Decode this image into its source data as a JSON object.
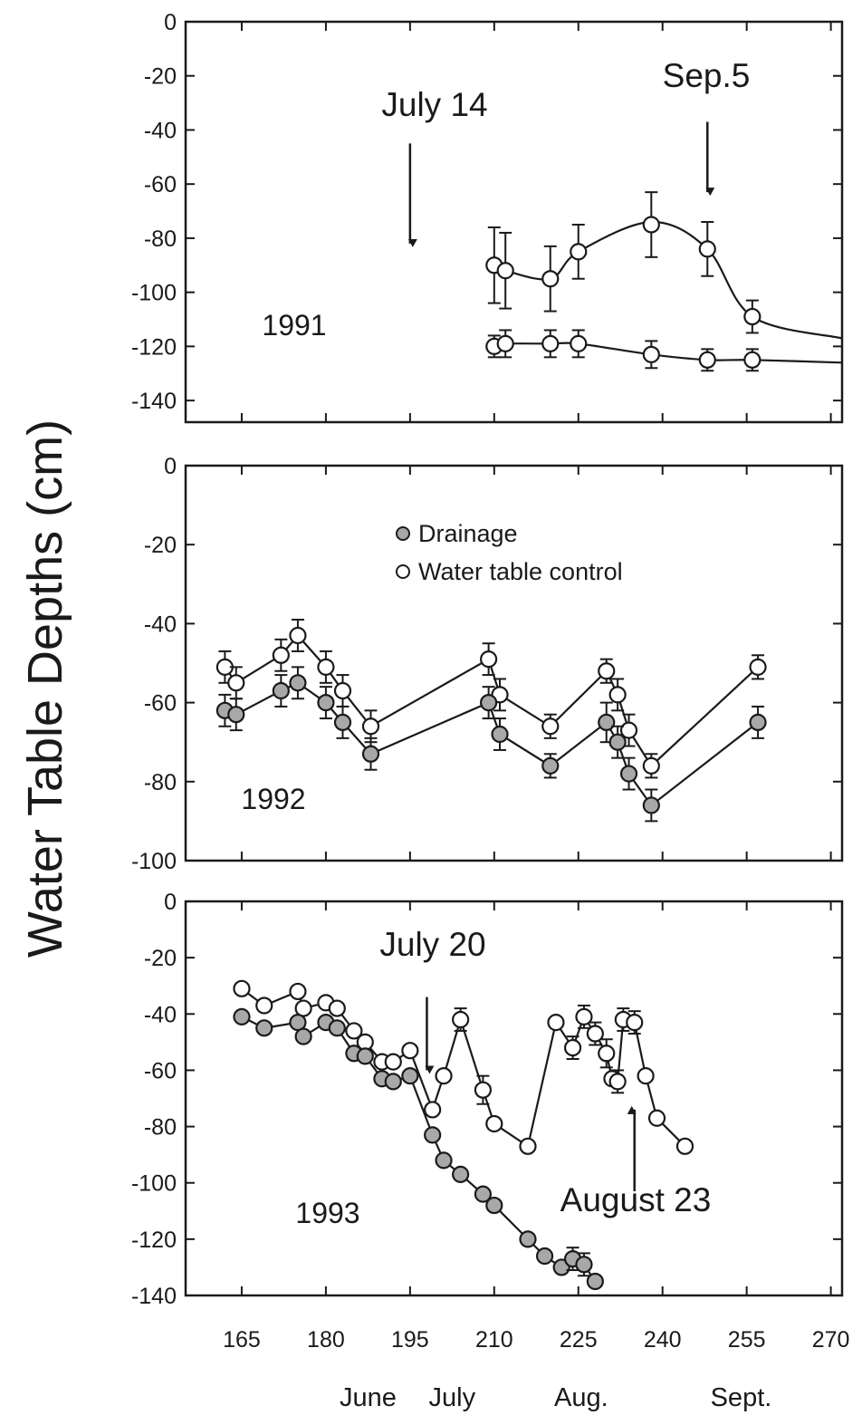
{
  "chart_data": {
    "type": "line",
    "ylabel": "Water Table Depths (cm)",
    "x_ticks": [
      165,
      180,
      195,
      210,
      225,
      240,
      255,
      270
    ],
    "x_months": [
      "June",
      "July",
      "Aug.",
      "Sept."
    ],
    "xlim": [
      155,
      272
    ],
    "legend": {
      "placement": "center of middle panel",
      "entries": [
        {
          "label": "Drainage",
          "marker": "shaded-circle"
        },
        {
          "label": "Water table control",
          "marker": "open-circle"
        }
      ]
    },
    "panels": [
      {
        "year": "1991",
        "ylim": [
          -148,
          0
        ],
        "y_ticks": [
          0,
          -20,
          -40,
          -60,
          -80,
          -100,
          -120,
          -140
        ],
        "annotations": [
          {
            "text": "July 14",
            "arrow_x": 195,
            "arrow_y_from": -45,
            "arrow_y_to": -82
          },
          {
            "text": "Sep.5",
            "arrow_x": 248,
            "arrow_y_from": -37,
            "arrow_y_to": -63
          }
        ],
        "series": [
          {
            "name": "Water table control",
            "marker": "open",
            "x": [
              210,
              212,
              220,
              225,
              238,
              248,
              256
            ],
            "y": [
              -90,
              -92,
              -95,
              -85,
              -75,
              -84,
              -109
            ],
            "err": [
              14,
              14,
              12,
              10,
              12,
              10,
              6
            ],
            "curve_x": [
              210,
              212,
              220,
              225,
              238,
              248,
              256,
              272
            ],
            "curve_y": [
              -90,
              -92,
              -95,
              -85,
              -74,
              -84,
              -109,
              -117
            ]
          },
          {
            "name": "Drainage",
            "marker": "open",
            "x": [
              210,
              212,
              220,
              225,
              238,
              248,
              256
            ],
            "y": [
              -120,
              -119,
              -119,
              -119,
              -123,
              -125,
              -125
            ],
            "err": [
              4,
              5,
              5,
              5,
              5,
              4,
              4
            ],
            "curve_x": [
              210,
              212,
              220,
              225,
              238,
              248,
              256,
              272
            ],
            "curve_y": [
              -120,
              -119,
              -119,
              -119,
              -123,
              -125,
              -125,
              -126
            ]
          }
        ]
      },
      {
        "year": "1992",
        "ylim": [
          -100,
          0
        ],
        "y_ticks": [
          0,
          -20,
          -40,
          -60,
          -80,
          -100
        ],
        "annotations": [],
        "series": [
          {
            "name": "Water table control",
            "marker": "open",
            "x": [
              162,
              164,
              172,
              175,
              180,
              183,
              188,
              209,
              211,
              220,
              230,
              232,
              234,
              238,
              257
            ],
            "y": [
              -51,
              -55,
              -48,
              -43,
              -51,
              -57,
              -66,
              -49,
              -58,
              -66,
              -52,
              -58,
              -67,
              -76,
              -51
            ],
            "err": [
              4,
              4,
              4,
              4,
              4,
              4,
              4,
              4,
              4,
              3,
              3,
              4,
              4,
              3,
              3
            ]
          },
          {
            "name": "Drainage",
            "marker": "shaded",
            "x": [
              162,
              164,
              172,
              175,
              180,
              183,
              188,
              209,
              211,
              220,
              230,
              232,
              234,
              238,
              257
            ],
            "y": [
              -62,
              -63,
              -57,
              -55,
              -60,
              -65,
              -73,
              -60,
              -68,
              -76,
              -65,
              -70,
              -78,
              -86,
              -65
            ],
            "err": [
              4,
              4,
              4,
              4,
              4,
              4,
              4,
              4,
              4,
              3,
              5,
              4,
              4,
              4,
              4
            ]
          }
        ]
      },
      {
        "year": "1993",
        "ylim": [
          -140,
          0
        ],
        "y_ticks": [
          0,
          -20,
          -40,
          -60,
          -80,
          -100,
          -120,
          -140
        ],
        "annotations": [
          {
            "text": "July 20",
            "arrow_x": 198,
            "arrow_y_from": -34,
            "arrow_y_to": -60
          },
          {
            "text": "August 23",
            "arrow_x": 235,
            "arrow_y_from": -103,
            "arrow_y_to": -74
          }
        ],
        "series": [
          {
            "name": "Water table control",
            "marker": "open",
            "x": [
              165,
              169,
              175,
              176,
              180,
              182,
              185,
              187,
              190,
              192,
              195,
              199,
              201,
              204,
              208,
              210,
              216,
              221,
              224,
              226,
              228,
              230,
              231,
              232,
              233,
              235,
              237,
              239,
              244
            ],
            "y": [
              -31,
              -37,
              -32,
              -38,
              -36,
              -38,
              -46,
              -50,
              -57,
              -57,
              -53,
              -74,
              -62,
              -42,
              -67,
              -79,
              -87,
              -43,
              -52,
              -41,
              -47,
              -54,
              -63,
              -64,
              -42,
              -43,
              -62,
              -77,
              -87
            ],
            "err": [
              0,
              0,
              0,
              0,
              0,
              0,
              0,
              0,
              0,
              0,
              0,
              0,
              0,
              4,
              5,
              0,
              0,
              0,
              4,
              4,
              4,
              5,
              0,
              4,
              4,
              4,
              0,
              0,
              0
            ]
          },
          {
            "name": "Drainage",
            "marker": "shaded",
            "x": [
              165,
              169,
              175,
              176,
              180,
              182,
              185,
              187,
              190,
              192,
              195,
              199,
              201,
              204,
              208,
              210,
              216,
              219,
              222,
              224,
              226,
              228
            ],
            "y": [
              -41,
              -45,
              -43,
              -48,
              -43,
              -45,
              -54,
              -55,
              -63,
              -64,
              -62,
              -83,
              -92,
              -97,
              -104,
              -108,
              -120,
              -126,
              -130,
              -127,
              -129,
              -135
            ],
            "err": [
              0,
              0,
              0,
              0,
              0,
              0,
              0,
              0,
              0,
              0,
              0,
              0,
              0,
              0,
              0,
              0,
              0,
              0,
              0,
              4,
              4,
              0
            ]
          }
        ]
      }
    ]
  },
  "colors": {
    "ink": "#1a1a1a",
    "shaded_fill": "#a8a8a8",
    "open_fill": "#ffffff",
    "background": "#ffffff"
  }
}
